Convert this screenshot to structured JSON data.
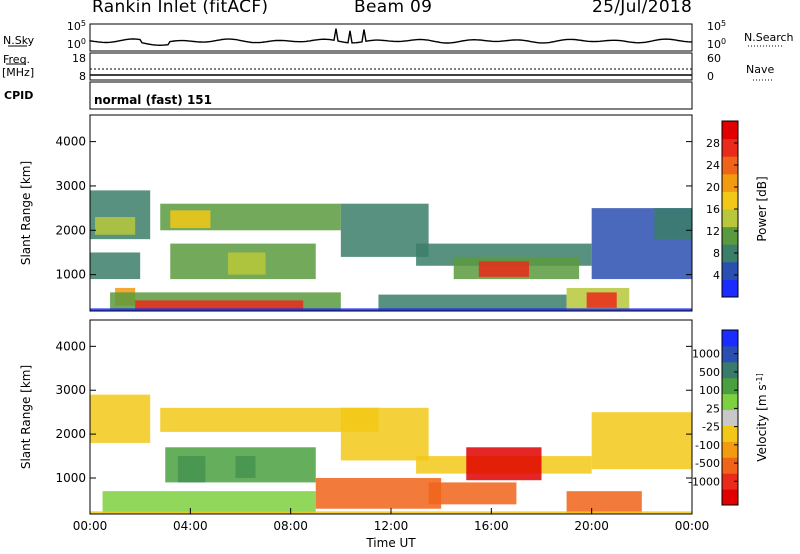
{
  "header": {
    "station": "Rankin Inlet (fitACF)",
    "beam": "Beam 09",
    "date": "25/Jul/2018"
  },
  "nsky": {
    "label": "N.Sky",
    "tick_top": "10^5",
    "tick_bottom": "10^0",
    "right_label": "N.Search",
    "right_tick_top": "10^5",
    "right_tick_bottom": "10^0"
  },
  "freq": {
    "label": "Freq.",
    "unit": "[MHz]",
    "tick_top": "18",
    "tick_bottom": "8",
    "right_label": "Nave",
    "right_tick_top": "60",
    "right_tick_bottom": "0"
  },
  "cpid": {
    "label": "CPID",
    "value": "normal (fast) 151"
  },
  "colors": {
    "axis": "#000000"
  },
  "chart_data": [
    {
      "type": "heatmap",
      "name": "power",
      "ylabel": "Slant Range [km]",
      "xlabel": "",
      "ylim": [
        180,
        4600
      ],
      "xlim": [
        0,
        24
      ],
      "yticks": [
        "1000",
        "2000",
        "3000",
        "4000"
      ],
      "yticks_values": [
        1000,
        2000,
        3000,
        4000
      ],
      "colorbar": {
        "label": "Power [dB]",
        "ticks": [
          "4",
          "8",
          "12",
          "16",
          "20",
          "24",
          "28"
        ],
        "colors": [
          "#1a2cff",
          "#2a4fb0",
          "#3b7e6a",
          "#5a9a3e",
          "#b8c83a",
          "#f2c818",
          "#f29a10",
          "#f0641a",
          "#ea2a1a",
          "#e00000"
        ]
      },
      "regions": [
        {
          "t0": 0.0,
          "t1": 2.4,
          "r0": 1800,
          "r1": 2900,
          "v": 8
        },
        {
          "t0": 0.2,
          "t1": 1.8,
          "r0": 1900,
          "r1": 2300,
          "v": 15
        },
        {
          "t0": 0.0,
          "t1": 2.0,
          "r0": 900,
          "r1": 1500,
          "v": 10
        },
        {
          "t0": 1.0,
          "t1": 1.8,
          "r0": 300,
          "r1": 700,
          "v": 20
        },
        {
          "t0": 2.8,
          "t1": 10.0,
          "r0": 2000,
          "r1": 2600,
          "v": 12
        },
        {
          "t0": 3.2,
          "t1": 4.8,
          "r0": 2050,
          "r1": 2450,
          "v": 18
        },
        {
          "t0": 3.2,
          "t1": 9.0,
          "r0": 900,
          "r1": 1700,
          "v": 11
        },
        {
          "t0": 5.5,
          "t1": 7.0,
          "r0": 1000,
          "r1": 1500,
          "v": 16
        },
        {
          "t0": 0.8,
          "t1": 10.0,
          "r0": 200,
          "r1": 600,
          "v": 13
        },
        {
          "t0": 1.8,
          "t1": 8.5,
          "r0": 200,
          "r1": 420,
          "v": 27
        },
        {
          "t0": 10.0,
          "t1": 13.5,
          "r0": 1400,
          "r1": 2600,
          "v": 9
        },
        {
          "t0": 11.5,
          "t1": 19.0,
          "r0": 200,
          "r1": 550,
          "v": 9
        },
        {
          "t0": 13.0,
          "t1": 20.0,
          "r0": 1200,
          "r1": 1700,
          "v": 8
        },
        {
          "t0": 14.5,
          "t1": 19.5,
          "r0": 900,
          "r1": 1400,
          "v": 12
        },
        {
          "t0": 15.5,
          "t1": 17.5,
          "r0": 950,
          "r1": 1300,
          "v": 26
        },
        {
          "t0": 19.0,
          "t1": 21.5,
          "r0": 200,
          "r1": 700,
          "v": 14
        },
        {
          "t0": 19.8,
          "t1": 21.0,
          "r0": 250,
          "r1": 600,
          "v": 27
        },
        {
          "t0": 20.0,
          "t1": 24.0,
          "r0": 900,
          "r1": 2500,
          "v": 7
        },
        {
          "t0": 22.5,
          "t1": 24.0,
          "r0": 1800,
          "r1": 2500,
          "v": 8
        },
        {
          "t0": 0.0,
          "t1": 24.0,
          "r0": 180,
          "r1": 240,
          "v": 4
        }
      ]
    },
    {
      "type": "heatmap",
      "name": "velocity",
      "ylabel": "Slant Range [km]",
      "xlabel": "Time UT",
      "ylim": [
        180,
        4600
      ],
      "xlim": [
        0,
        24
      ],
      "yticks": [
        "1000",
        "2000",
        "3000",
        "4000"
      ],
      "yticks_values": [
        1000,
        2000,
        3000,
        4000
      ],
      "xticks": [
        "00:00",
        "04:00",
        "08:00",
        "12:00",
        "16:00",
        "20:00",
        "00:00"
      ],
      "xticks_values": [
        0,
        4,
        8,
        12,
        16,
        20,
        24
      ],
      "colorbar": {
        "label": "Velocity [m s^-1]",
        "ticks": [
          "1000",
          "500",
          "100",
          "25",
          "-25",
          "-100",
          "-500",
          "-1000"
        ],
        "colors": [
          "#1a2cff",
          "#2a4fb0",
          "#3a7a6a",
          "#4aa040",
          "#7ed040",
          "#c8c8c8",
          "#f2c818",
          "#f29a10",
          "#f0641a",
          "#ea2a1a",
          "#e00000"
        ]
      },
      "regions": [
        {
          "t0": 0.0,
          "t1": 2.4,
          "r0": 1800,
          "r1": 2900,
          "v": 0
        },
        {
          "t0": 2.8,
          "t1": 11.5,
          "r0": 2050,
          "r1": 2600,
          "v": 0
        },
        {
          "t0": 3.5,
          "t1": 4.6,
          "r0": 900,
          "r1": 1500,
          "v": 700
        },
        {
          "t0": 5.8,
          "t1": 6.6,
          "r0": 1000,
          "r1": 1500,
          "v": 700
        },
        {
          "t0": 3.0,
          "t1": 9.0,
          "r0": 900,
          "r1": 1700,
          "v": 150
        },
        {
          "t0": 0.5,
          "t1": 9.0,
          "r0": 200,
          "r1": 700,
          "v": 80
        },
        {
          "t0": 9.0,
          "t1": 14.0,
          "r0": 300,
          "r1": 1000,
          "v": -150
        },
        {
          "t0": 10.0,
          "t1": 13.5,
          "r0": 1400,
          "r1": 2600,
          "v": 0
        },
        {
          "t0": 13.0,
          "t1": 20.0,
          "r0": 1100,
          "r1": 1500,
          "v": 0
        },
        {
          "t0": 15.0,
          "t1": 18.0,
          "r0": 950,
          "r1": 1700,
          "v": -550
        },
        {
          "t0": 13.5,
          "t1": 17.0,
          "r0": 400,
          "r1": 900,
          "v": -150
        },
        {
          "t0": 19.0,
          "t1": 22.0,
          "r0": 200,
          "r1": 700,
          "v": -250
        },
        {
          "t0": 20.0,
          "t1": 24.0,
          "r0": 1200,
          "r1": 2500,
          "v": 0
        },
        {
          "t0": 0.0,
          "t1": 24.0,
          "r0": 180,
          "r1": 240,
          "v": 0
        }
      ]
    }
  ]
}
